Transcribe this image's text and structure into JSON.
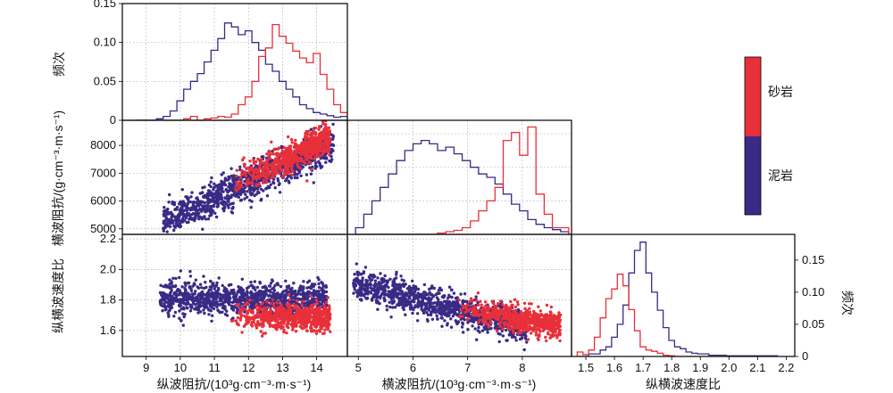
{
  "colors": {
    "sand": "#e8303a",
    "mud": "#3a2a86"
  },
  "legend": {
    "items": [
      {
        "label": "砂岩",
        "color": "#e8303a"
      },
      {
        "label": "泥岩",
        "color": "#3a2a86"
      }
    ]
  },
  "chart_data": [
    {
      "id": "hist_p",
      "type": "histogram-step",
      "xlabel": "纵波阻抗/(10³g·cm⁻³·m·s⁻¹)",
      "ylabel": "频次",
      "xlim": [
        8.3,
        14.9
      ],
      "ylim": [
        0,
        0.15
      ],
      "xticks": [
        "9",
        "10",
        "11",
        "12",
        "13",
        "14"
      ],
      "yticks": [
        "0",
        "0.05",
        "0.10",
        "0.15"
      ],
      "bins": {
        "start": 8.7,
        "width": 0.2
      },
      "series": [
        {
          "name": "泥岩",
          "values": [
            0,
            0,
            0,
            0.002,
            0.005,
            0.012,
            0.025,
            0.04,
            0.05,
            0.06,
            0.075,
            0.09,
            0.105,
            0.125,
            0.12,
            0.11,
            0.115,
            0.1,
            0.09,
            0.072,
            0.063,
            0.05,
            0.04,
            0.03,
            0.02,
            0.015,
            0.01,
            0.008,
            0.006,
            0.004,
            0.005,
            0.002
          ]
        },
        {
          "name": "砂岩",
          "values": [
            0,
            0,
            0,
            0,
            0,
            0,
            0,
            0.002,
            0.005,
            0,
            0.002,
            0.003,
            0.005,
            0.004,
            0.008,
            0.02,
            0.03,
            0.05,
            0.082,
            0.093,
            0.123,
            0.108,
            0.099,
            0.089,
            0.08,
            0.074,
            0.086,
            0.059,
            0.04,
            0.02,
            0.01,
            0.005
          ]
        }
      ]
    },
    {
      "id": "hist_s",
      "type": "histogram-step",
      "xlabel": "横波阻抗/(10³g·cm⁻³·m·s⁻¹)",
      "xlim": [
        4.8,
        8.9
      ],
      "ylim": [
        0,
        0.17
      ],
      "xticks": [
        "5",
        "6",
        "7",
        "8"
      ],
      "bins": {
        "start": 4.95,
        "width": 0.15
      },
      "series": [
        {
          "name": "泥岩",
          "values": [
            0.01,
            0.03,
            0.05,
            0.07,
            0.09,
            0.11,
            0.125,
            0.135,
            0.14,
            0.135,
            0.125,
            0.13,
            0.12,
            0.11,
            0.1,
            0.09,
            0.085,
            0.075,
            0.06,
            0.045,
            0.035,
            0.022,
            0.015,
            0.01,
            0.007,
            0.004
          ]
        },
        {
          "name": "砂岩",
          "values": [
            0,
            0,
            0,
            0,
            0,
            0,
            0,
            0,
            0,
            0,
            0.002,
            0.004,
            0.006,
            0.01,
            0.02,
            0.035,
            0.05,
            0.07,
            0.14,
            0.152,
            0.118,
            0.16,
            0.06,
            0.03,
            0.01,
            0.01
          ]
        }
      ]
    },
    {
      "id": "hist_r",
      "type": "histogram-step",
      "xlabel": "纵横波速度比",
      "ylabel": "频次",
      "xlim": [
        1.45,
        2.23
      ],
      "ylim": [
        0,
        0.19
      ],
      "xticks": [
        "1.5",
        "1.6",
        "1.7",
        "1.8",
        "1.9",
        "2.0",
        "2.1",
        "2.2"
      ],
      "yticks": [
        "0",
        "0.05",
        "0.10",
        "0.15"
      ],
      "bins": {
        "start": 1.47,
        "width": 0.02
      },
      "series": [
        {
          "name": "泥岩",
          "values": [
            0,
            0,
            0.004,
            0.004,
            0.01,
            0.015,
            0.03,
            0.05,
            0.08,
            0.13,
            0.165,
            0.178,
            0.13,
            0.1,
            0.072,
            0.045,
            0.025,
            0.015,
            0.012,
            0.007,
            0.005,
            0.004,
            0.004,
            0.002,
            0.002,
            0.002,
            0.001,
            0.001,
            0.001,
            0.001,
            0.001,
            0.001,
            0.001,
            0.001,
            0.001
          ]
        },
        {
          "name": "砂岩",
          "values": [
            0.007,
            0.003,
            0.01,
            0.03,
            0.06,
            0.09,
            0.105,
            0.128,
            0.11,
            0.073,
            0.04,
            0.015,
            0.01,
            0.008,
            0.005,
            0.002,
            0.001,
            0,
            0,
            0,
            0,
            0,
            0,
            0,
            0,
            0,
            0,
            0,
            0,
            0,
            0,
            0,
            0,
            0,
            0
          ]
        }
      ]
    },
    {
      "id": "scatter_ps",
      "type": "scatter",
      "ylabel": "横波阻抗/(g·cm⁻³·m·s⁻¹)",
      "xlim": [
        8.3,
        14.9
      ],
      "ylim": [
        4800,
        8900
      ],
      "yticks": [
        "5000",
        "6000",
        "7000",
        "8000"
      ],
      "series": [
        {
          "name": "泥岩",
          "cloud": {
            "x_range": [
              9.5,
              14.5
            ],
            "slope": 570,
            "intercept": -200,
            "spread": 320
          }
        },
        {
          "name": "砂岩",
          "cloud": {
            "x_range": [
              11.5,
              14.4
            ],
            "slope": 580,
            "intercept": -80,
            "spread": 260
          }
        }
      ]
    },
    {
      "id": "scatter_pr",
      "type": "scatter",
      "ylabel": "纵横波速度比",
      "xlim": [
        8.3,
        14.9
      ],
      "ylim": [
        1.43,
        2.23
      ],
      "yticks": [
        "1.6",
        "1.8",
        "2.0",
        "2.2"
      ],
      "series": [
        {
          "name": "泥岩",
          "cloud": {
            "x_range": [
              9.4,
              14.3
            ],
            "y_center": 1.81,
            "spread": 0.05
          }
        },
        {
          "name": "砂岩",
          "cloud": {
            "x_range": [
              11.5,
              14.4
            ],
            "y_center": 1.69,
            "spread": 0.045
          }
        }
      ]
    },
    {
      "id": "scatter_sr",
      "type": "scatter",
      "xlim": [
        4.8,
        8.9
      ],
      "ylim": [
        1.43,
        2.23
      ],
      "series": [
        {
          "name": "泥岩",
          "cloud": {
            "x_range": [
              4.9,
              8.1
            ],
            "slope": -0.09,
            "intercept": 2.35,
            "spread": 0.05
          }
        },
        {
          "name": "砂岩",
          "cloud": {
            "x_range": [
              6.8,
              8.7
            ],
            "slope": -0.06,
            "intercept": 2.15,
            "spread": 0.04
          }
        }
      ]
    }
  ]
}
